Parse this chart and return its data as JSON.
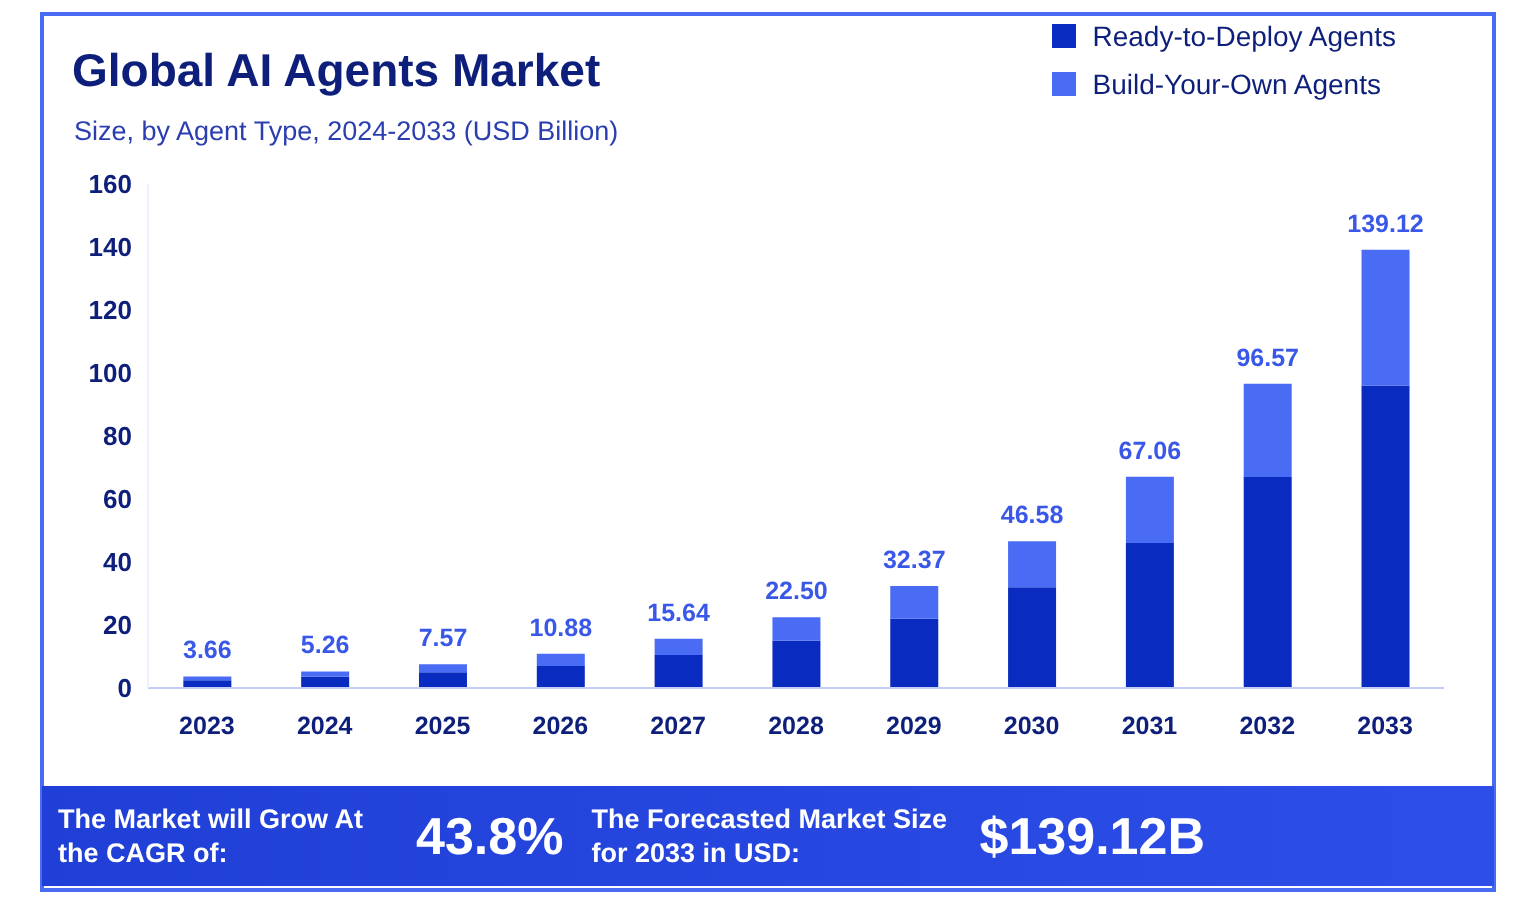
{
  "chart_data": {
    "type": "bar",
    "title": "Global AI Agents Market",
    "subtitle": "Size, by Agent Type, 2024-2033 (USD Billion)",
    "categories": [
      "2023",
      "2024",
      "2025",
      "2026",
      "2027",
      "2028",
      "2029",
      "2030",
      "2031",
      "2032",
      "2033"
    ],
    "stacked": true,
    "series": [
      {
        "name": "Ready-to-Deploy Agents",
        "color": "#0a2bbf",
        "values": [
          2.5,
          3.6,
          5,
          7,
          10.5,
          15,
          22,
          32,
          46,
          67,
          96
        ]
      },
      {
        "name": "Build-Your-Own Agents",
        "color": "#4a6cf5",
        "values": [
          1.16,
          1.66,
          2.57,
          3.88,
          5.14,
          7.5,
          10.37,
          14.58,
          21.06,
          29.57,
          43.12
        ]
      }
    ],
    "totals": [
      "3.66",
      "5.26",
      "7.57",
      "10.88",
      "15.64",
      "22.50",
      "32.37",
      "46.58",
      "67.06",
      "96.57",
      "139.12"
    ],
    "ylim": [
      0,
      160
    ],
    "yticks": [
      0,
      20,
      40,
      60,
      80,
      100,
      120,
      140,
      160
    ],
    "grid": false,
    "legend": "top right",
    "annotations": [
      "The Market will Grow At the CAGR of:",
      "43.8%",
      "The Forecasted Market Size for 2033 in USD:",
      "$139.12B"
    ]
  }
}
